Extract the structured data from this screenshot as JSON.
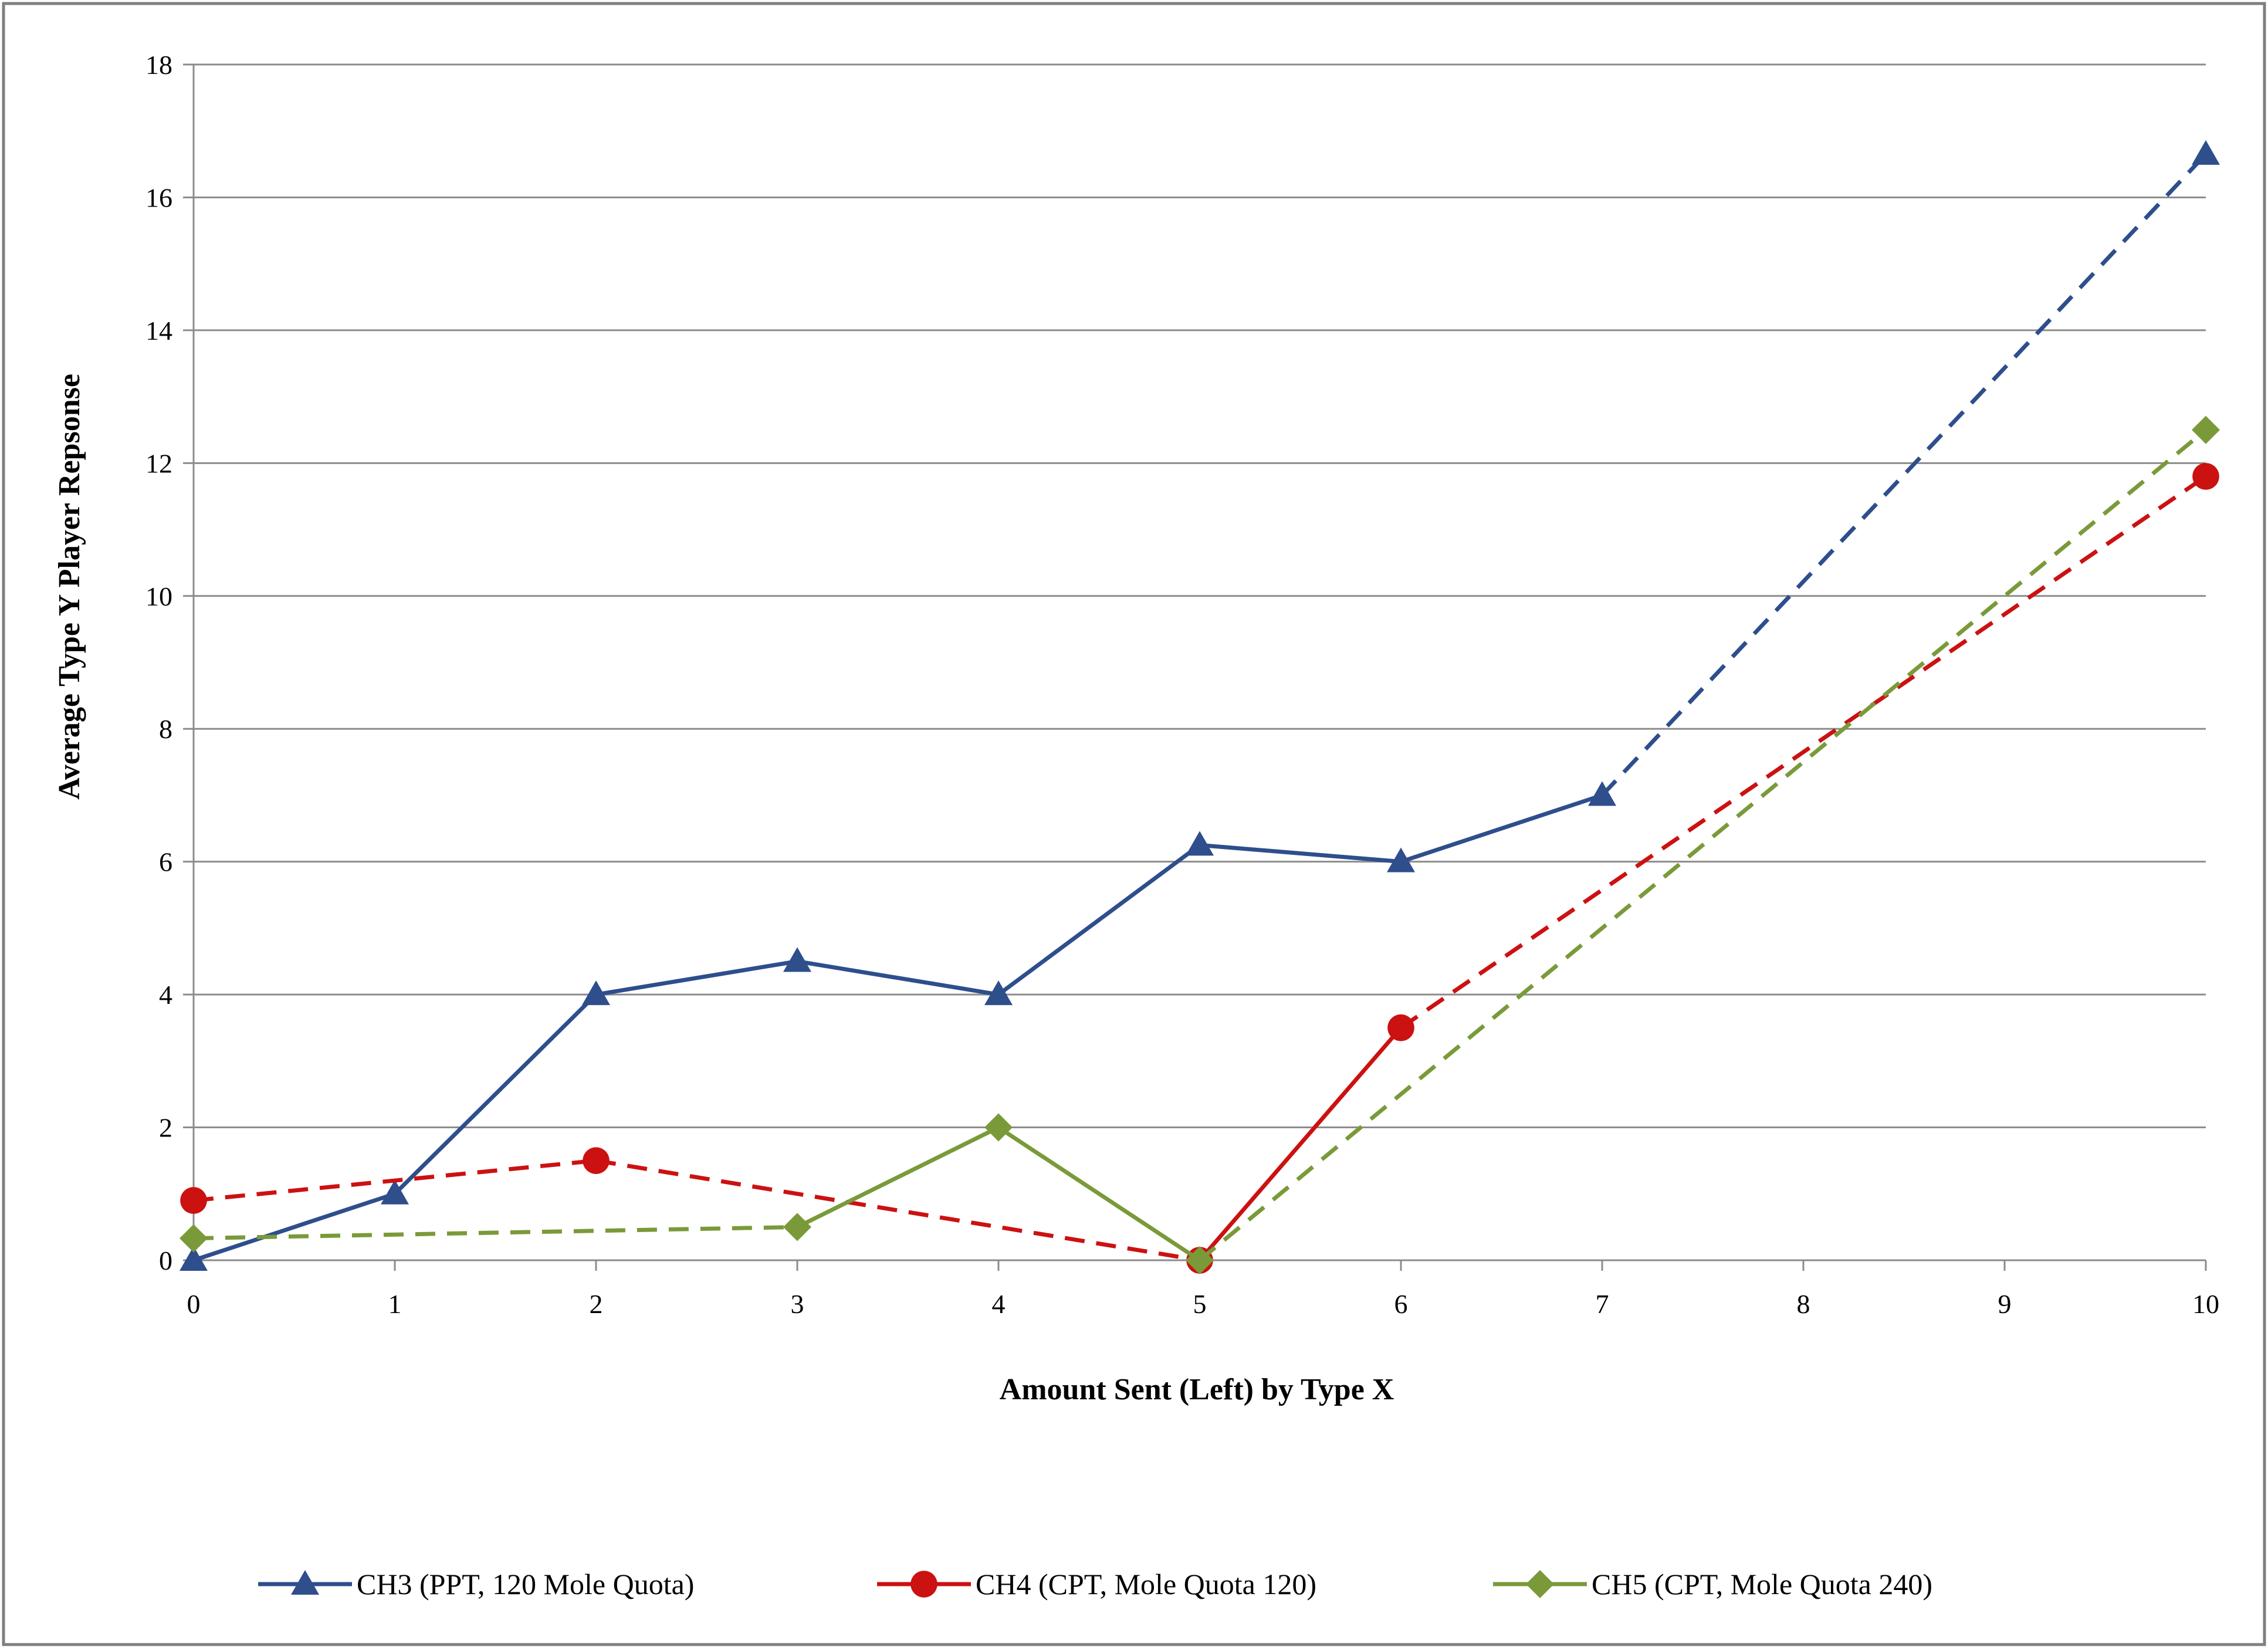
{
  "chart_data": {
    "type": "line",
    "title": "",
    "xlabel": "Amount Sent (Left) by Type X",
    "ylabel": "Average Type Y Player Repsonse",
    "xlim": [
      0,
      10
    ],
    "ylim": [
      0,
      18
    ],
    "x_ticks": [
      "0",
      "1",
      "2",
      "3",
      "4",
      "5",
      "6",
      "7",
      "8",
      "9",
      "10"
    ],
    "y_ticks": [
      "0",
      "2",
      "4",
      "6",
      "8",
      "10",
      "12",
      "14",
      "16",
      "18"
    ],
    "grid": "horizontal",
    "legend_position": "bottom",
    "series": [
      {
        "name": "CH3 (PPT, 120 Mole Quota)",
        "color": "#2e4e8c",
        "marker": "triangle",
        "points": [
          [
            0,
            0
          ],
          [
            1,
            1
          ],
          [
            2,
            4
          ],
          [
            3,
            4.5
          ],
          [
            4,
            4
          ],
          [
            5,
            6.25
          ],
          [
            6,
            6
          ],
          [
            7,
            7
          ],
          [
            10,
            16.65
          ]
        ],
        "segment_styles": [
          "solid",
          "solid",
          "solid",
          "solid",
          "solid",
          "solid",
          "solid",
          "dashed"
        ]
      },
      {
        "name": "CH4 (CPT, Mole Quota 120)",
        "color": "#cc1111",
        "marker": "circle",
        "points": [
          [
            0,
            0.9
          ],
          [
            2,
            1.5
          ],
          [
            5,
            0
          ],
          [
            6,
            3.5
          ],
          [
            10,
            11.8
          ]
        ],
        "segment_styles": [
          "dashed",
          "dashed",
          "solid",
          "dashed"
        ]
      },
      {
        "name": "CH5 (CPT, Mole Quota 240)",
        "color": "#7a9a3a",
        "marker": "diamond",
        "points": [
          [
            0,
            0.33
          ],
          [
            3,
            0.5
          ],
          [
            4,
            2
          ],
          [
            5,
            0
          ],
          [
            10,
            12.5
          ]
        ],
        "segment_styles": [
          "dashed",
          "solid",
          "solid",
          "dashed"
        ]
      }
    ]
  }
}
